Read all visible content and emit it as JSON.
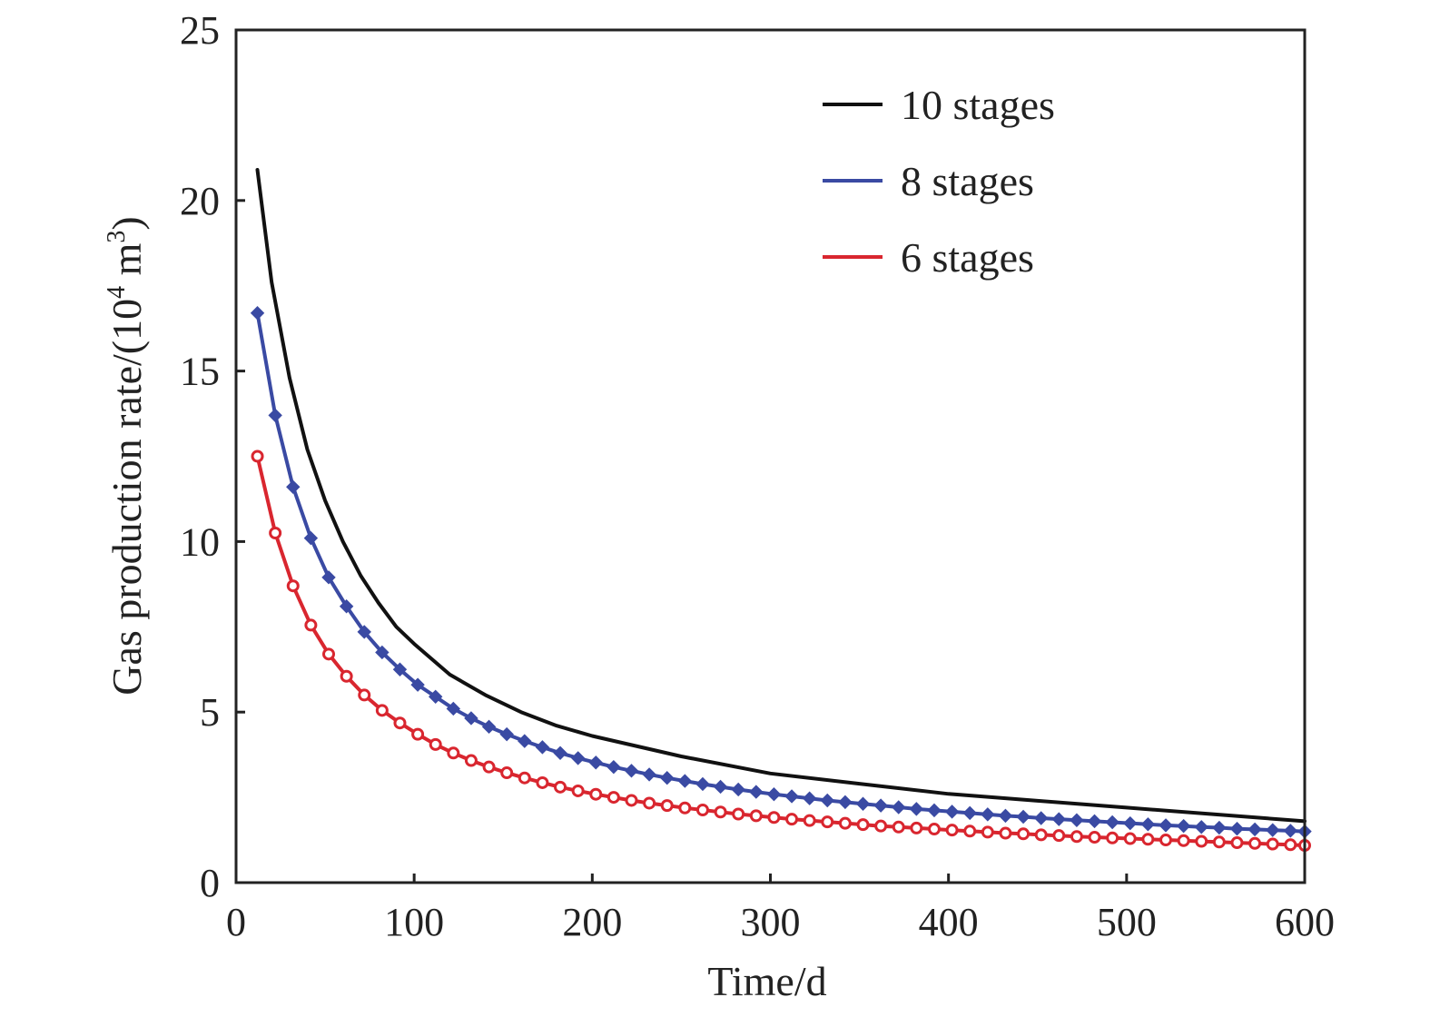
{
  "chart_data": {
    "type": "line",
    "xlabel": "Time/d",
    "ylabel": "Gas production rate/(10",
    "ylabel_sup1": "4",
    "ylabel_mid": " m",
    "ylabel_sup2": "3",
    "ylabel_end": ")",
    "xlim": [
      0,
      600
    ],
    "ylim": [
      0,
      25
    ],
    "xticks": [
      0,
      100,
      200,
      300,
      400,
      500,
      600
    ],
    "yticks": [
      0,
      5,
      10,
      15,
      20,
      25
    ],
    "grid": false,
    "legend_position": "top-right",
    "series": [
      {
        "name": "10 stages",
        "color": "#111111",
        "marker": "none",
        "x": [
          12,
          20,
          30,
          40,
          50,
          60,
          70,
          80,
          90,
          100,
          120,
          140,
          160,
          180,
          200,
          250,
          300,
          350,
          400,
          450,
          500,
          550,
          600
        ],
        "y": [
          20.9,
          17.6,
          14.8,
          12.7,
          11.2,
          10.0,
          9.0,
          8.2,
          7.5,
          7.0,
          6.1,
          5.5,
          5.0,
          4.6,
          4.3,
          3.7,
          3.2,
          2.9,
          2.6,
          2.4,
          2.2,
          2.0,
          1.8
        ]
      },
      {
        "name": "8 stages",
        "color": "#3a4aa3",
        "marker": "diamond",
        "x": [
          12,
          22,
          32,
          42,
          52,
          62,
          72,
          82,
          92,
          102,
          112,
          122,
          132,
          142,
          152,
          162,
          172,
          182,
          192,
          202,
          212,
          222,
          232,
          242,
          252,
          262,
          272,
          282,
          292,
          302,
          312,
          322,
          332,
          342,
          352,
          362,
          372,
          382,
          392,
          402,
          412,
          422,
          432,
          442,
          452,
          462,
          472,
          482,
          492,
          502,
          512,
          522,
          532,
          542,
          552,
          562,
          572,
          582,
          592,
          600
        ],
        "y": [
          16.7,
          13.7,
          11.6,
          10.1,
          8.95,
          8.1,
          7.35,
          6.75,
          6.25,
          5.8,
          5.45,
          5.1,
          4.82,
          4.57,
          4.35,
          4.15,
          3.97,
          3.8,
          3.65,
          3.52,
          3.39,
          3.28,
          3.17,
          3.07,
          2.98,
          2.89,
          2.81,
          2.73,
          2.66,
          2.59,
          2.53,
          2.47,
          2.41,
          2.36,
          2.31,
          2.26,
          2.21,
          2.16,
          2.12,
          2.08,
          2.04,
          2.0,
          1.96,
          1.93,
          1.89,
          1.86,
          1.83,
          1.8,
          1.77,
          1.74,
          1.71,
          1.68,
          1.66,
          1.63,
          1.61,
          1.58,
          1.56,
          1.54,
          1.52,
          1.5
        ]
      },
      {
        "name": "6 stages",
        "color": "#d9262f",
        "marker": "circle",
        "x": [
          12,
          22,
          32,
          42,
          52,
          62,
          72,
          82,
          92,
          102,
          112,
          122,
          132,
          142,
          152,
          162,
          172,
          182,
          192,
          202,
          212,
          222,
          232,
          242,
          252,
          262,
          272,
          282,
          292,
          302,
          312,
          322,
          332,
          342,
          352,
          362,
          372,
          382,
          392,
          402,
          412,
          422,
          432,
          442,
          452,
          462,
          472,
          482,
          492,
          502,
          512,
          522,
          532,
          542,
          552,
          562,
          572,
          582,
          592,
          600
        ],
        "y": [
          12.5,
          10.25,
          8.7,
          7.55,
          6.7,
          6.05,
          5.5,
          5.05,
          4.68,
          4.35,
          4.05,
          3.8,
          3.58,
          3.39,
          3.22,
          3.07,
          2.93,
          2.8,
          2.69,
          2.59,
          2.5,
          2.41,
          2.33,
          2.26,
          2.19,
          2.13,
          2.07,
          2.01,
          1.96,
          1.91,
          1.86,
          1.82,
          1.78,
          1.74,
          1.7,
          1.66,
          1.63,
          1.6,
          1.57,
          1.54,
          1.51,
          1.48,
          1.45,
          1.43,
          1.4,
          1.38,
          1.35,
          1.33,
          1.31,
          1.29,
          1.27,
          1.25,
          1.23,
          1.21,
          1.19,
          1.17,
          1.15,
          1.13,
          1.11,
          1.09
        ]
      }
    ]
  }
}
